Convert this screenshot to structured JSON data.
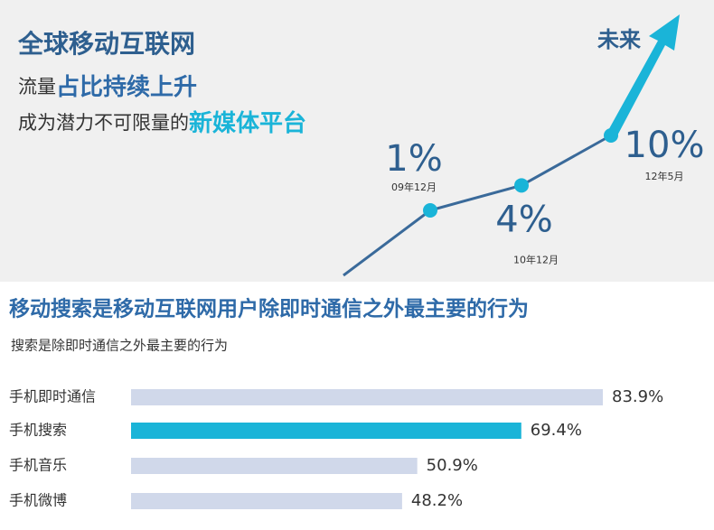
{
  "header": {
    "line1": "全球移动互联网",
    "line2_plain": "流量",
    "line2_bold": "占比持续上升",
    "line3_plain": "成为潜力不可限量的",
    "line3_bold": "新媒体平台"
  },
  "chart_data": [
    {
      "type": "line",
      "categories": [
        "09年12月",
        "10年12月",
        "12年5月"
      ],
      "values": [
        1,
        4,
        10
      ],
      "value_labels": [
        "1%",
        "4%",
        "10%"
      ],
      "color": "#3a6a9a",
      "marker_color": "#1ab4d8",
      "annotation": "未来"
    },
    {
      "type": "hbar",
      "title": "移动搜索是移动互联网用户除即时通信之外最主要的行为",
      "subtitle": "搜索是除即时通信之外最主要的行为",
      "categories": [
        "手机即时通信",
        "手机搜索",
        "手机音乐",
        "手机微博"
      ],
      "values": [
        83.9,
        69.4,
        50.9,
        48.2
      ],
      "value_labels": [
        "83.9%",
        "69.4%",
        "50.9%",
        "48.2%"
      ],
      "colors": [
        "#d0d8ea",
        "#1ab4d8",
        "#d0d8ea",
        "#d0d8ea"
      ]
    }
  ]
}
